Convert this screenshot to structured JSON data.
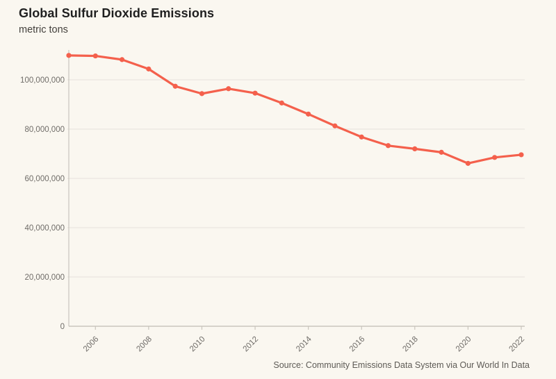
{
  "header": {
    "title": "Global Sulfur Dioxide Emissions",
    "subtitle": "metric tons"
  },
  "source": {
    "text": "Source: Community Emissions Data System via Our World In Data"
  },
  "chart_data": {
    "type": "line",
    "title": "Global Sulfur Dioxide Emissions",
    "ylabel": "metric tons",
    "xlabel": "",
    "x": [
      2005,
      2006,
      2007,
      2008,
      2009,
      2010,
      2011,
      2012,
      2013,
      2014,
      2015,
      2016,
      2017,
      2018,
      2019,
      2020,
      2021,
      2022
    ],
    "values": [
      109900000,
      109700000,
      108200000,
      104400000,
      97400000,
      94400000,
      96400000,
      94600000,
      90600000,
      86100000,
      81300000,
      76800000,
      73300000,
      72000000,
      70600000,
      66100000,
      68500000,
      69600000
    ],
    "ylim": [
      0,
      113000000
    ],
    "yticks": [
      0,
      20000000,
      40000000,
      60000000,
      80000000,
      100000000
    ],
    "ytick_labels": [
      "0",
      "20,000,000",
      "40,000,000",
      "60,000,000",
      "80,000,000",
      "100,000,000"
    ],
    "xticks": [
      2006,
      2008,
      2010,
      2012,
      2014,
      2016,
      2018,
      2020,
      2022
    ],
    "grid": true,
    "legend": false,
    "marker": "circle",
    "line_color": "#f4604c",
    "grid_color": "#e9e6df",
    "axis_color": "#c9c5bd",
    "tick_label_color": "#6f6c68"
  }
}
